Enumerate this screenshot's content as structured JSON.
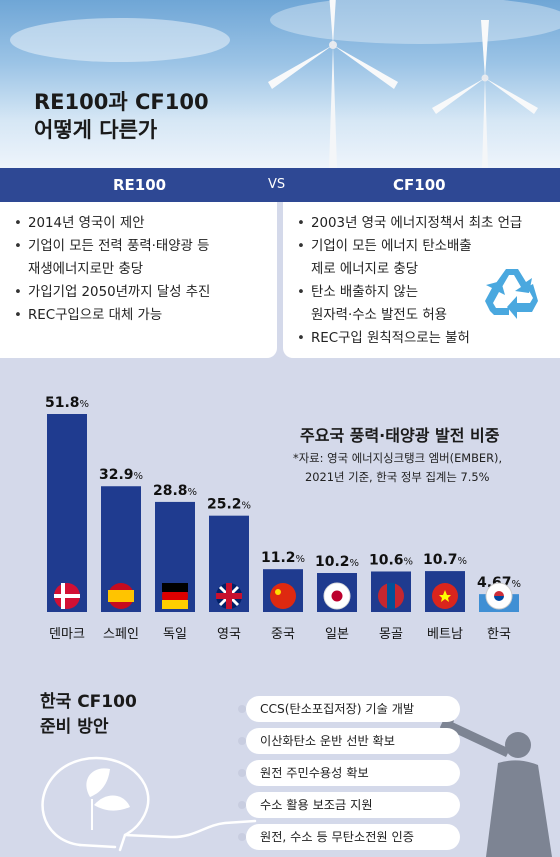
{
  "header": {
    "title_line1": "RE100과 CF100",
    "title_line2": "어떻게 다른가"
  },
  "compare": {
    "left_heading": "RE100",
    "vs": "VS",
    "right_heading": "CF100",
    "left_items": [
      [
        "2014년 영국이 제안"
      ],
      [
        "기업이 모든 전력 풍력·태양광 등",
        "재생에너지로만 충당"
      ],
      [
        "가입기업 2050년까지 달성 추진"
      ],
      [
        "REC구입으로 대체 가능"
      ]
    ],
    "right_items": [
      [
        "2003년 영국 에너지정책서 최초 언급"
      ],
      [
        "기업이 모든 에너지 탄소배출",
        "제로 에너지로 충당"
      ],
      [
        "탄소 배출하지 않는",
        "원자력·수소 발전도 허용"
      ],
      [
        "REC구입 원칙적으로는 불허"
      ]
    ]
  },
  "chart_title": "주요국 풍력·태양광 발전 비중",
  "chart_note_line1": "*자료: 영국 에너지싱크탱크 엠버(EMBER),",
  "chart_note_line2": "2021년 기준, 한국 정부 집계는 7.5%",
  "chart_data": {
    "type": "bar",
    "title": "주요국 풍력·태양광 발전 비중",
    "unit": "%",
    "categories": [
      "덴마크",
      "스페인",
      "독일",
      "영국",
      "중국",
      "일본",
      "몽골",
      "베트남",
      "한국"
    ],
    "values": [
      51.8,
      32.9,
      28.8,
      25.2,
      11.2,
      10.2,
      10.6,
      10.7,
      4.67
    ],
    "value_labels": [
      "51.8",
      "32.9",
      "28.8",
      "25.2",
      "11.2",
      "10.2",
      "10.6",
      "10.7",
      "4.67"
    ],
    "highlight_color": "#3f8fd4",
    "bar_color": "#1f3b8f",
    "ylim": [
      0,
      51.8
    ]
  },
  "bottom": {
    "title_line1": "한국 CF100",
    "title_line2": "준비 방안",
    "plans": [
      "CCS(탄소포집저장) 기술 개발",
      "이산화탄소 운반 선반 확보",
      "원전 주민수용성 확보",
      "수소 활용 보조금 지원",
      "원전, 수소 등 무탄소전원 인증"
    ]
  }
}
